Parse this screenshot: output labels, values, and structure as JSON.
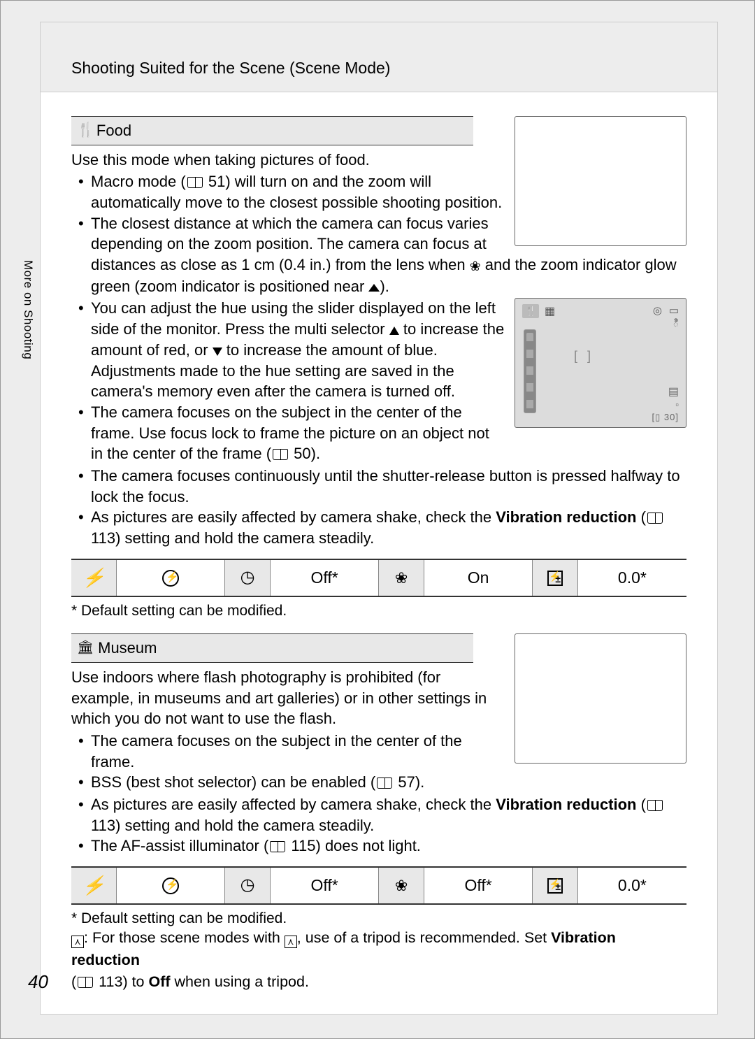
{
  "header": {
    "breadcrumb": "Shooting Suited for the Scene (Scene Mode)"
  },
  "side_label": "More on Shooting",
  "page_number": "40",
  "food": {
    "title": "Food",
    "intro": "Use this mode when taking pictures of food.",
    "b1_a": "Macro mode (",
    "b1_ref": "51",
    "b1_b": ") will turn on and the zoom will automatically move to the closest possible shooting position.",
    "b2_a": "The closest distance at which the camera can focus varies depending on the zoom position. The camera can focus at distances as close as 1 cm (0.4 in.) from the lens when ",
    "b2_b": " and the zoom indicator glow green (zoom indicator is positioned near ",
    "b2_c": ").",
    "b3_a": "You can adjust the hue using the slider displayed on the left side of the monitor. Press the multi selector ",
    "b3_b": " to increase the amount of red, or ",
    "b3_c": " to increase the amount of blue. Adjustments made to the hue setting are saved in the camera's memory even after the camera is turned off.",
    "b4_a": "The camera focuses on the subject in the center of the frame. Use focus lock to frame the picture on an object not in the center of the frame (",
    "b4_ref": "50",
    "b4_b": ").",
    "b5": "The camera focuses continuously until the shutter-release button is pressed halfway to lock the focus.",
    "b6_a": "As pictures are easily affected by camera shake, check the ",
    "b6_bold": "Vibration reduction",
    "b6_b": " (",
    "b6_ref": "113",
    "b6_c": ") setting and hold the camera steadily.",
    "table": {
      "timer": "Off*",
      "macro": "On",
      "exp": "0.0*"
    },
    "footnote": "*  Default setting can be modified.",
    "lcd": {
      "counter": "30"
    }
  },
  "museum": {
    "title": "Museum",
    "intro": "Use indoors where flash photography is prohibited (for example, in museums and art galleries) or in other settings in which you do not want to use the flash.",
    "b1": "The camera focuses on the subject in the center of the frame.",
    "b2_a": "BSS (best shot selector) can be enabled (",
    "b2_ref": "57",
    "b2_b": ").",
    "b3_a": "As pictures are easily affected by camera shake, check the ",
    "b3_bold": "Vibration reduction",
    "b3_b": " (",
    "b3_ref": "113",
    "b3_c": ") setting and hold the camera steadily.",
    "b4_a": "The AF-assist illuminator (",
    "b4_ref": "115",
    "b4_b": ") does not light.",
    "table": {
      "timer": "Off*",
      "macro": "Off*",
      "exp": "0.0*"
    },
    "footnote": "*  Default setting can be modified."
  },
  "bottom": {
    "a": ": For those scene modes with ",
    "b": ", use of a tripod is recommended. Set ",
    "bold": "Vibration reduction",
    "c": " (",
    "ref": "113",
    "d": ") to ",
    "off": "Off",
    "e": " when using a tripod."
  }
}
